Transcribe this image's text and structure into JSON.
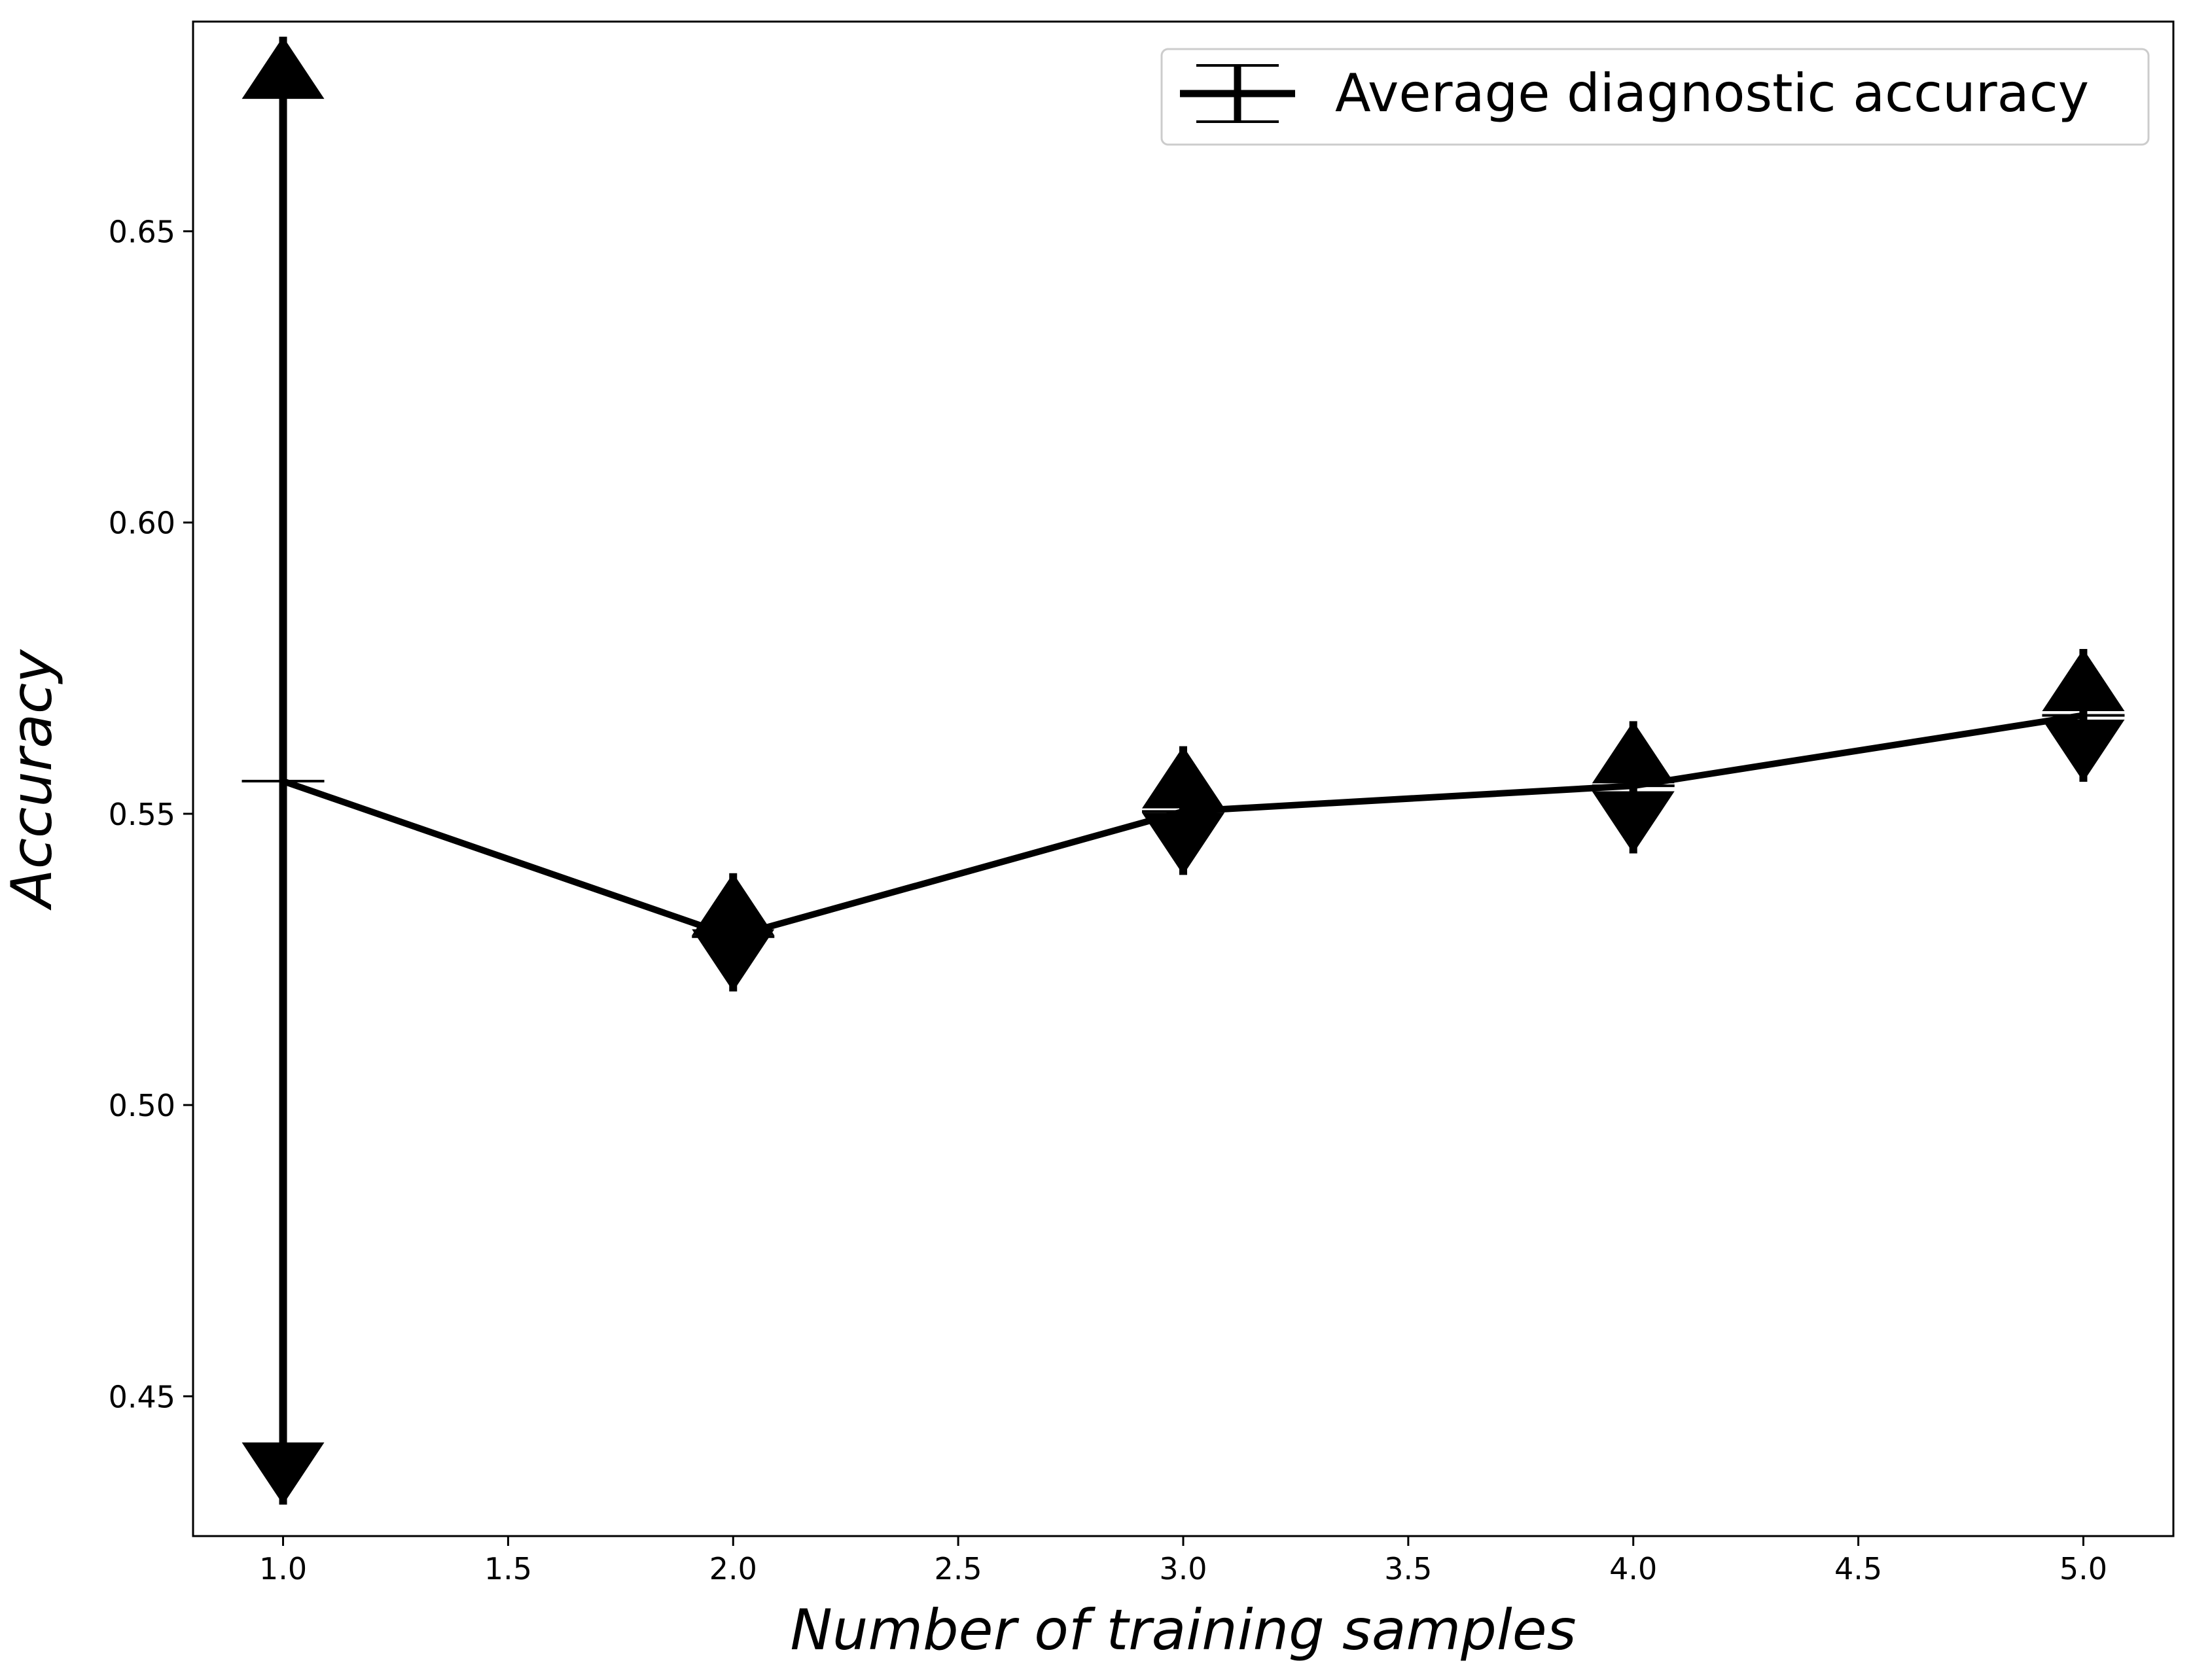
{
  "chart_data": {
    "type": "line",
    "title": "",
    "xlabel": "Number of training samples",
    "ylabel": "Accuracy",
    "xlim": [
      0.8,
      5.2
    ],
    "ylim": [
      0.426,
      0.686
    ],
    "xticks": [
      "1.0",
      "1.5",
      "2.0",
      "2.5",
      "3.0",
      "3.5",
      "4.0",
      "4.5",
      "5.0"
    ],
    "yticks": [
      "0.45",
      "0.50",
      "0.55",
      "0.60",
      "0.65"
    ],
    "grid": false,
    "legend_position": "top-right",
    "series": [
      {
        "name": "Average diagnostic accuracy",
        "color": "#000000",
        "x": [
          1,
          2,
          3,
          4,
          5
        ],
        "y": [
          0.5556,
          0.5289,
          0.5504,
          0.5548,
          0.5669
        ],
        "error_low": [
          0.4314,
          0.5195,
          0.5395,
          0.5432,
          0.5555
        ],
        "error_high": [
          0.6834,
          0.5398,
          0.5616,
          0.5659,
          0.5783
        ]
      }
    ]
  }
}
